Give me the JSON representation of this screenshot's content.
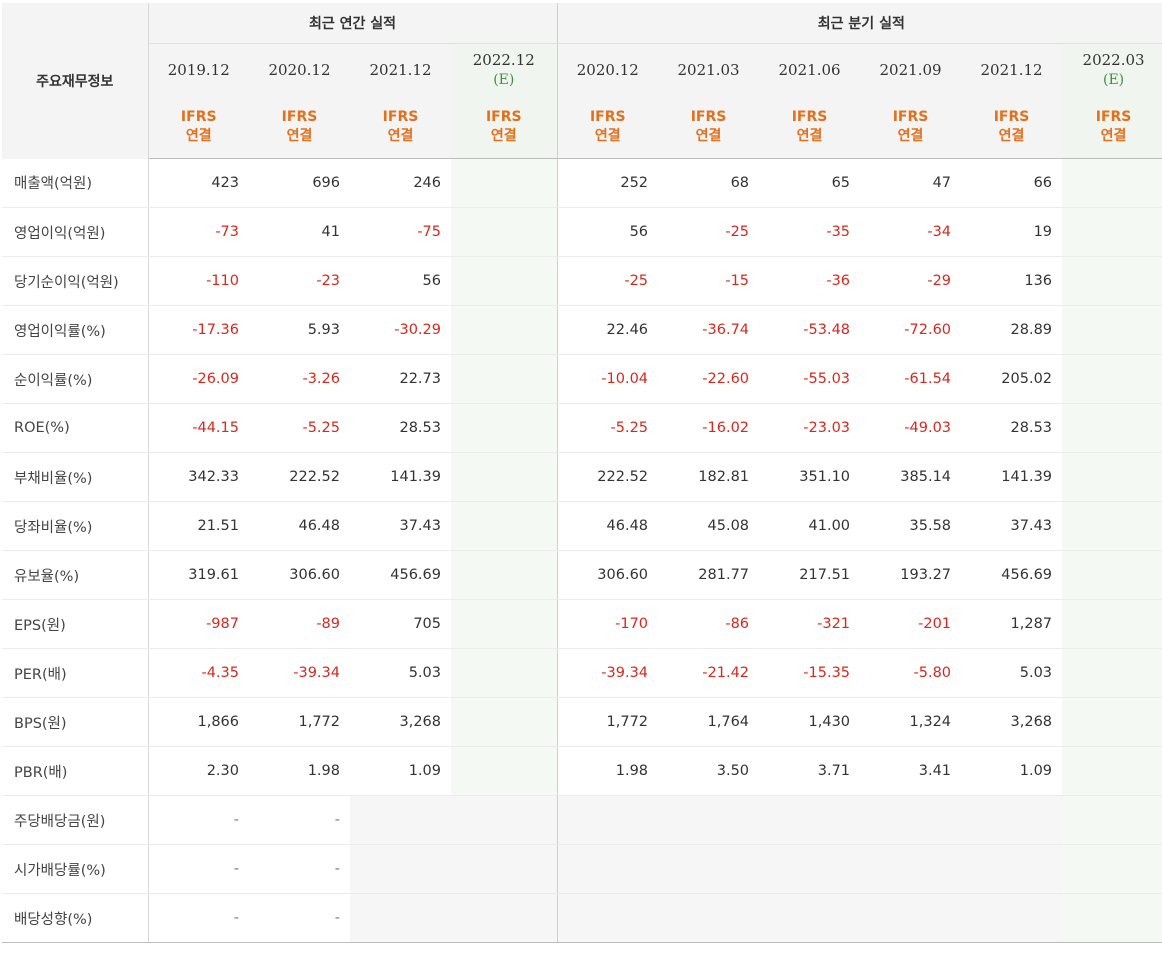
{
  "header": {
    "row_label": "주요재무정보",
    "annual_group": "최근 연간 실적",
    "quarter_group": "최근 분기 실적",
    "ifrs_line1": "IFRS",
    "ifrs_line2": "연결",
    "estimate_mark": "(E)"
  },
  "columns": [
    {
      "period": "2019.12",
      "est": false
    },
    {
      "period": "2020.12",
      "est": false
    },
    {
      "period": "2021.12",
      "est": false
    },
    {
      "period": "2022.12",
      "est": true
    },
    {
      "period": "2020.12",
      "est": false
    },
    {
      "period": "2021.03",
      "est": false
    },
    {
      "period": "2021.06",
      "est": false
    },
    {
      "period": "2021.09",
      "est": false
    },
    {
      "period": "2021.12",
      "est": false
    },
    {
      "period": "2022.03",
      "est": true
    }
  ],
  "rows": [
    {
      "label": "매출액(억원)",
      "values": [
        "423",
        "696",
        "246",
        "",
        "252",
        "68",
        "65",
        "47",
        "66",
        ""
      ]
    },
    {
      "label": "영업이익(억원)",
      "values": [
        "-73",
        "41",
        "-75",
        "",
        "56",
        "-25",
        "-35",
        "-34",
        "19",
        ""
      ]
    },
    {
      "label": "당기순이익(억원)",
      "values": [
        "-110",
        "-23",
        "56",
        "",
        "-25",
        "-15",
        "-36",
        "-29",
        "136",
        ""
      ]
    },
    {
      "label": "영업이익률(%)",
      "values": [
        "-17.36",
        "5.93",
        "-30.29",
        "",
        "22.46",
        "-36.74",
        "-53.48",
        "-72.60",
        "28.89",
        ""
      ]
    },
    {
      "label": "순이익률(%)",
      "values": [
        "-26.09",
        "-3.26",
        "22.73",
        "",
        "-10.04",
        "-22.60",
        "-55.03",
        "-61.54",
        "205.02",
        ""
      ]
    },
    {
      "label": "ROE(%)",
      "values": [
        "-44.15",
        "-5.25",
        "28.53",
        "",
        "-5.25",
        "-16.02",
        "-23.03",
        "-49.03",
        "28.53",
        ""
      ]
    },
    {
      "label": "부채비율(%)",
      "values": [
        "342.33",
        "222.52",
        "141.39",
        "",
        "222.52",
        "182.81",
        "351.10",
        "385.14",
        "141.39",
        ""
      ]
    },
    {
      "label": "당좌비율(%)",
      "values": [
        "21.51",
        "46.48",
        "37.43",
        "",
        "46.48",
        "45.08",
        "41.00",
        "35.58",
        "37.43",
        ""
      ]
    },
    {
      "label": "유보율(%)",
      "values": [
        "319.61",
        "306.60",
        "456.69",
        "",
        "306.60",
        "281.77",
        "217.51",
        "193.27",
        "456.69",
        ""
      ]
    },
    {
      "label": "EPS(원)",
      "values": [
        "-987",
        "-89",
        "705",
        "",
        "-170",
        "-86",
        "-321",
        "-201",
        "1,287",
        ""
      ]
    },
    {
      "label": "PER(배)",
      "values": [
        "-4.35",
        "-39.34",
        "5.03",
        "",
        "-39.34",
        "-21.42",
        "-15.35",
        "-5.80",
        "5.03",
        ""
      ]
    },
    {
      "label": "BPS(원)",
      "values": [
        "1,866",
        "1,772",
        "3,268",
        "",
        "1,772",
        "1,764",
        "1,430",
        "1,324",
        "3,268",
        ""
      ]
    },
    {
      "label": "PBR(배)",
      "values": [
        "2.30",
        "1.98",
        "1.09",
        "",
        "1.98",
        "3.50",
        "3.71",
        "3.41",
        "1.09",
        ""
      ]
    },
    {
      "label": "주당배당금(원)",
      "values": [
        "-",
        "-",
        "",
        "",
        "",
        "",
        "",
        "",
        "",
        ""
      ]
    },
    {
      "label": "시가배당률(%)",
      "values": [
        "-",
        "-",
        "",
        "",
        "",
        "",
        "",
        "",
        "",
        ""
      ]
    },
    {
      "label": "배당성향(%)",
      "values": [
        "-",
        "-",
        "",
        "",
        "",
        "",
        "",
        "",
        "",
        ""
      ]
    }
  ],
  "colors": {
    "negative": "#d8281e",
    "ifrs": "#e4701e",
    "estimate": "#3f8f3f"
  }
}
